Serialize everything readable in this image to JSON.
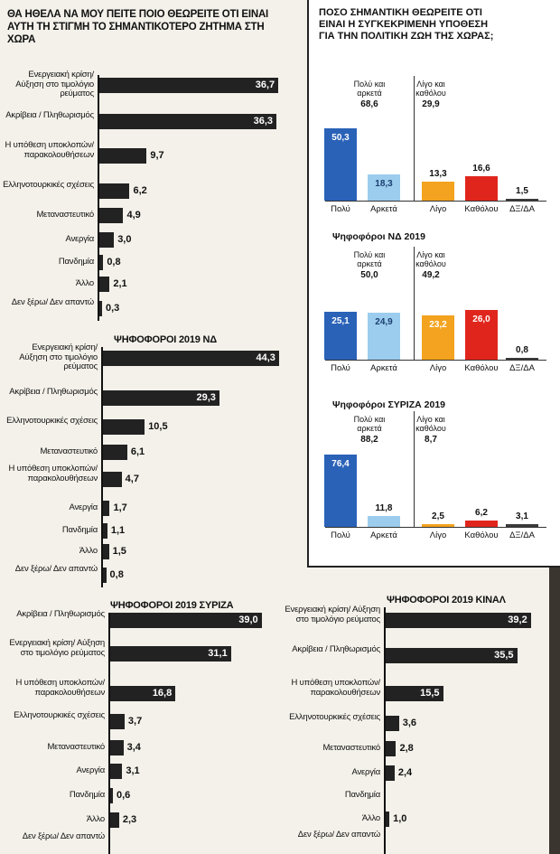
{
  "chart_data": [
    {
      "type": "bar",
      "orientation": "horizontal",
      "title": "ΘΑ ΗΘΕΛΑ ΝΑ ΜΟΥ ΠΕΙΤΕ ΠΟΙΟ ΘΕΩΡΕΙΤΕ ΟΤΙ ΕΙΝΑΙ ΑΥΤΗ ΤΗ ΣΤΙΓΜΗ ΤΟ ΣΗΜΑΝΤΙΚΟΤΕΡΟ ΖΗΤΗΜΑ ΣΤΗ ΧΩΡΑ",
      "categories": [
        "Ενεργειακή κρίση/ Αύξηση στο τιμολόγιο ρεύματος",
        "Ακρίβεια / Πληθωρισμός",
        "Η υπόθεση υποκλοπών/ παρακολουθήσεων",
        "Ελληνοτουρκικές σχέσεις",
        "Μεταναστευτικό",
        "Ανεργία",
        "Πανδημία",
        "Άλλο",
        "Δεν ξέρω/ Δεν απαντώ"
      ],
      "values": [
        "36,7",
        "36,3",
        "9,7",
        "6,2",
        "4,9",
        "3,0",
        "0,8",
        "2,1",
        "0,3"
      ]
    },
    {
      "type": "bar",
      "orientation": "horizontal",
      "title": "ΨΗΦΟΦΟΡΟΙ 2019 ΝΔ",
      "categories": [
        "Ενεργειακή κρίση/ Αύξηση στο τιμολόγιο ρεύματος",
        "Ακρίβεια / Πληθωρισμός",
        "Ελληνοτουρκικές σχέσεις",
        "Μεταναστευτικό",
        "Η υπόθεση υποκλοπών/ παρακολουθήσεων",
        "Ανεργία",
        "Πανδημία",
        "Άλλο",
        "Δεν ξέρω/ Δεν απαντώ"
      ],
      "values": [
        "44,3",
        "29,3",
        "10,5",
        "6,1",
        "4,7",
        "1,7",
        "1,1",
        "1,5",
        "0,8"
      ]
    },
    {
      "type": "bar",
      "orientation": "horizontal",
      "title": "ΨΗΦΟΦΟΡΟΙ 2019 ΣΥΡΙΖΑ",
      "categories": [
        "Ακρίβεια / Πληθωρισμός",
        "Ενεργειακή κρίση/ Αύξηση στο τιμολόγιο ρεύματος",
        "Η υπόθεση υποκλοπών/ παρακολουθήσεων",
        "Ελληνοτουρκικές σχέσεις",
        "Μεταναστευτικό",
        "Ανεργία",
        "Πανδημία",
        "Άλλο",
        "Δεν ξέρω/ Δεν απαντώ"
      ],
      "values": [
        "39,0",
        "31,1",
        "16,8",
        "3,7",
        "3,4",
        "3,1",
        "0,6",
        "2,3",
        ""
      ]
    },
    {
      "type": "bar",
      "orientation": "horizontal",
      "title": "ΨΗΦΟΦΟΡΟΙ 2019 ΚΙΝΑΛ",
      "categories": [
        "Ενεργειακή κρίση/ Αύξηση στο τιμολόγιο ρεύματος",
        "Ακρίβεια / Πληθωρισμός",
        "Η υπόθεση υποκλοπών/ παρακολουθήσεων",
        "Ελληνοτουρκικές σχέσεις",
        "Μεταναστευτικό",
        "Ανεργία",
        "Πανδημία",
        "Άλλο",
        "Δεν ξέρω/ Δεν απαντώ"
      ],
      "values": [
        "39,2",
        "35,5",
        "15,5",
        "3,6",
        "2,8",
        "2,4",
        "",
        "1,0",
        ""
      ]
    },
    {
      "type": "bar",
      "orientation": "vertical",
      "title": "ΠΟΣΟ ΣΗΜΑΝΤΙΚΗ ΘΕΩΡΕΙΤΕ ΟΤΙ ΕΙΝΑΙ Η ΣΥΓΚΕΚΡΙΜΕΝΗ ΥΠΟΘΕΣΗ ΓΙΑ ΤΗΝ ΠΟΛΙΤΙΚΗ ΖΩΗ ΤΗΣ ΧΩΡΑΣ;",
      "categories": [
        "Πολύ",
        "Αρκετά",
        "Λίγο",
        "Καθόλου",
        "ΔΞ/ΔΑ"
      ],
      "values": [
        "50,3",
        "18,3",
        "13,3",
        "16,6",
        "1,5"
      ],
      "groups": [
        {
          "label": "Πολύ και αρκετά",
          "value": "68,6"
        },
        {
          "label": "Λίγο και καθόλου",
          "value": "29,9"
        }
      ]
    },
    {
      "type": "bar",
      "orientation": "vertical",
      "title": "Ψηφοφόροι ΝΔ 2019",
      "categories": [
        "Πολύ",
        "Αρκετά",
        "Λίγο",
        "Καθόλου",
        "ΔΞ/ΔΑ"
      ],
      "values": [
        "25,1",
        "24,9",
        "23,2",
        "26,0",
        "0,8"
      ],
      "groups": [
        {
          "label": "Πολύ και αρκετά",
          "value": "50,0"
        },
        {
          "label": "Λίγο και καθόλου",
          "value": "49,2"
        }
      ]
    },
    {
      "type": "bar",
      "orientation": "vertical",
      "title": "Ψηφοφόροι ΣΥΡΙΖΑ 2019",
      "categories": [
        "Πολύ",
        "Αρκετά",
        "Λίγο",
        "Καθόλου",
        "ΔΞ/ΔΑ"
      ],
      "values": [
        "76,4",
        "11,8",
        "2,5",
        "6,2",
        "3,1"
      ],
      "groups": [
        {
          "label": "Πολύ και αρκετά",
          "value": "88,2"
        },
        {
          "label": "Λίγο και καθόλου",
          "value": "8,7"
        }
      ]
    }
  ],
  "colors": {
    "hbar": "#222222",
    "poly": "#2a62b8",
    "arketa": "#9dcdee",
    "ligo": "#f3a31f",
    "katholou": "#e0261c",
    "dkda": "#3a3a3a"
  }
}
